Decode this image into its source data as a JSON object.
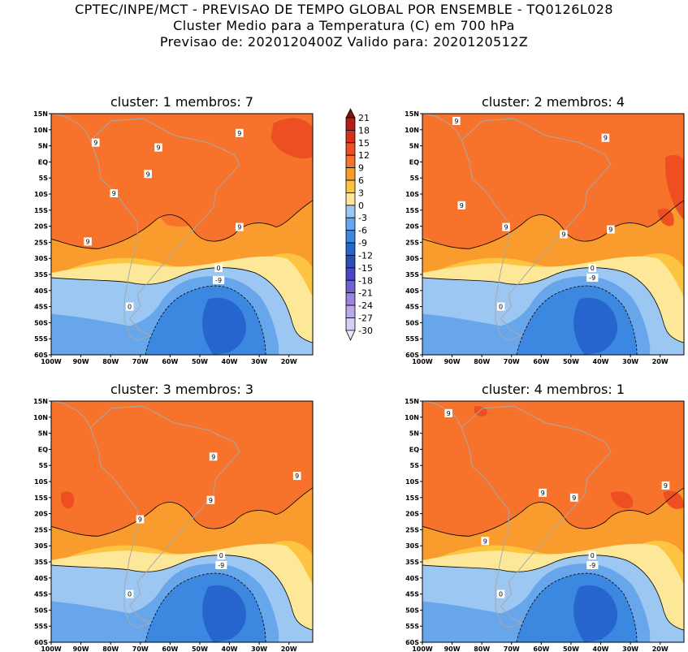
{
  "header": {
    "line1": "CPTEC/INPE/MCT - PREVISAO DE TEMPO GLOBAL POR ENSEMBLE - TQ0126L028",
    "line2": "Cluster Medio para a Temperatura (C) em 700 hPa",
    "line3": "Previsao de: 2020120400Z   Valido para: 2020120512Z"
  },
  "chart_data": [
    {
      "type": "heatmap",
      "title": "cluster: 1  membros: 7",
      "cluster": 1,
      "membros": 7,
      "xlabels": [
        "100W",
        "90W",
        "80W",
        "70W",
        "60W",
        "50W",
        "40W",
        "30W",
        "20W"
      ],
      "ylabels": [
        "15N",
        "10N",
        "5N",
        "EQ",
        "5S",
        "10S",
        "15S",
        "20S",
        "25S",
        "30S",
        "35S",
        "40S",
        "45S",
        "50S",
        "55S",
        "60S"
      ],
      "xlim": [
        -100,
        -12
      ],
      "ylim": [
        -60,
        15
      ],
      "contour_labels": [
        "9",
        "9",
        "9",
        "9",
        "9",
        "9",
        "9",
        "0",
        "-9",
        "0"
      ]
    },
    {
      "type": "heatmap",
      "title": "cluster: 2  membros: 4",
      "cluster": 2,
      "membros": 4,
      "xlabels": [
        "100W",
        "90W",
        "80W",
        "70W",
        "60W",
        "50W",
        "40W",
        "30W",
        "20W"
      ],
      "ylabels": [
        "15N",
        "10N",
        "5N",
        "EQ",
        "5S",
        "10S",
        "15S",
        "20S",
        "25S",
        "30S",
        "35S",
        "40S",
        "45S",
        "50S",
        "55S",
        "60S"
      ],
      "xlim": [
        -100,
        -12
      ],
      "ylim": [
        -60,
        15
      ],
      "contour_labels": [
        "9",
        "9",
        "9",
        "9",
        "9",
        "9",
        "0",
        "-9",
        "0"
      ]
    },
    {
      "type": "heatmap",
      "title": "cluster: 3  membros: 3",
      "cluster": 3,
      "membros": 3,
      "xlabels": [
        "100W",
        "90W",
        "80W",
        "70W",
        "60W",
        "50W",
        "40W",
        "30W",
        "20W"
      ],
      "ylabels": [
        "15N",
        "10N",
        "5N",
        "EQ",
        "5S",
        "10S",
        "15S",
        "20S",
        "25S",
        "30S",
        "35S",
        "40S",
        "45S",
        "50S",
        "55S",
        "60S"
      ],
      "xlim": [
        -100,
        -12
      ],
      "ylim": [
        -60,
        15
      ],
      "contour_labels": [
        "9",
        "9",
        "9",
        "9",
        "0",
        "-9",
        "0"
      ]
    },
    {
      "type": "heatmap",
      "title": "cluster: 4  membros: 1",
      "cluster": 4,
      "membros": 1,
      "xlabels": [
        "100W",
        "90W",
        "80W",
        "70W",
        "60W",
        "50W",
        "40W",
        "30W",
        "20W"
      ],
      "ylabels": [
        "15N",
        "10N",
        "5N",
        "EQ",
        "5S",
        "10S",
        "15S",
        "20S",
        "25S",
        "30S",
        "35S",
        "40S",
        "45S",
        "50S",
        "55S",
        "60S"
      ],
      "xlim": [
        -100,
        -12
      ],
      "ylim": [
        -60,
        15
      ],
      "contour_labels": [
        "9",
        "9",
        "9",
        "9",
        "9",
        "0",
        "-9",
        "0"
      ]
    }
  ],
  "colorbar": {
    "levels": [
      "21",
      "18",
      "15",
      "12",
      "9",
      "6",
      "3",
      "0",
      "-3",
      "-6",
      "-9",
      "-12",
      "-15",
      "-18",
      "-21",
      "-24",
      "-27",
      "-30"
    ],
    "colors": [
      "#7d1411",
      "#b21d18",
      "#d92f1d",
      "#ee4f22",
      "#f7722b",
      "#f99c2d",
      "#fcc441",
      "#fde89a",
      "#9cc7f2",
      "#68a6ec",
      "#3c87e0",
      "#2565cd",
      "#2950b8",
      "#4b46c5",
      "#7061d2",
      "#9a84df",
      "#bba8e9",
      "#d8cdf3",
      "#ece8fa"
    ]
  }
}
